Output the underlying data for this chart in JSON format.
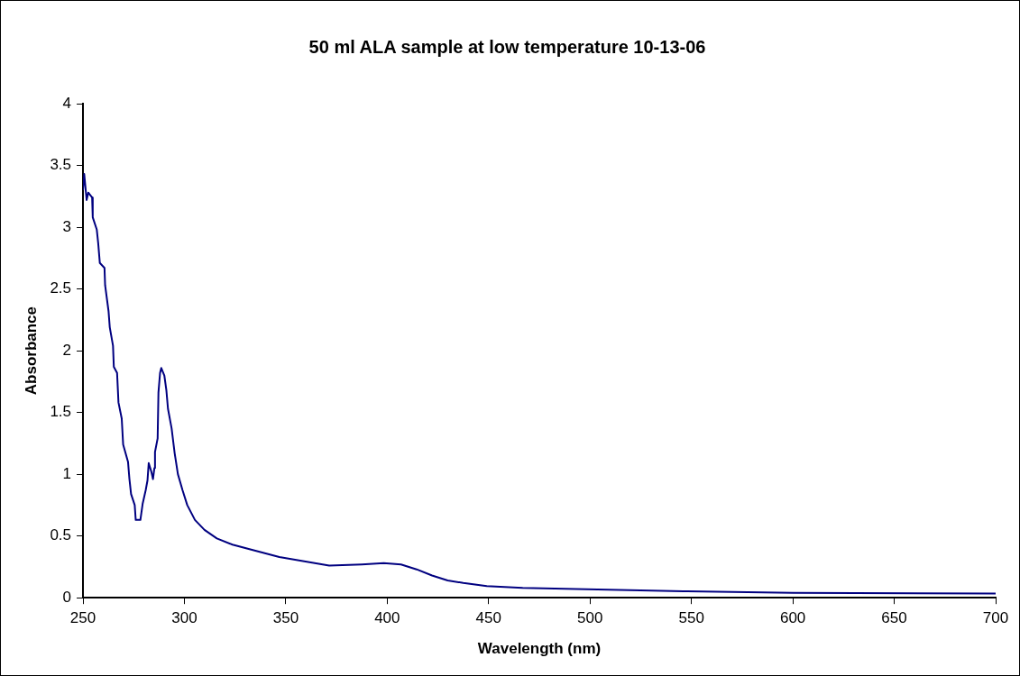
{
  "chart_data": {
    "type": "line",
    "title": "50 ml ALA sample at low temperature 10-13-06",
    "xlabel": "Wavelength (nm)",
    "ylabel": "Absorbance",
    "xlim": [
      250,
      700
    ],
    "xticks": [
      250,
      300,
      350,
      400,
      450,
      500,
      550,
      600,
      650,
      700
    ],
    "ylim": [
      0,
      4
    ],
    "yticks": [
      0,
      0.5,
      1,
      1.5,
      2,
      2.5,
      3,
      3.5,
      4
    ],
    "grid": false,
    "legend": false,
    "marker": "none",
    "line_style": "solid",
    "series": [
      {
        "color": "#000080",
        "x": [
          250,
          250.6,
          251.8,
          252.6,
          254.5,
          254.8,
          256.8,
          257.5,
          258.3,
          260.6,
          260.9,
          262.6,
          263.2,
          264.8,
          265.2,
          266.8,
          267.5,
          269.1,
          269.8,
          272.2,
          272.9,
          273.7,
          275.5,
          276,
          278.3,
          279.4,
          280.9,
          281.8,
          282.4,
          283.7,
          284.5,
          285.2,
          285.5,
          286.8,
          287.2,
          288,
          288.6,
          290.1,
          291.1,
          291.9,
          293.7,
          295.2,
          296.8,
          299.1,
          301.4,
          305.2,
          309.9,
          316,
          323.7,
          332.9,
          346.8,
          371.4,
          387.5,
          398.3,
          406.8,
          414.5,
          422.1,
          429.8,
          437.5,
          449.1,
          466.8,
          509,
          546,
          600,
          700
        ],
        "values": [
          3.3,
          3.43,
          3.22,
          3.28,
          3.24,
          3.08,
          2.98,
          2.87,
          2.71,
          2.67,
          2.53,
          2.32,
          2.19,
          2.04,
          1.87,
          1.82,
          1.58,
          1.45,
          1.24,
          1.1,
          0.96,
          0.84,
          0.75,
          0.63,
          0.63,
          0.76,
          0.87,
          0.95,
          1.09,
          1.02,
          0.96,
          1.05,
          1.18,
          1.29,
          1.66,
          1.82,
          1.86,
          1.8,
          1.68,
          1.53,
          1.37,
          1.17,
          1,
          0.87,
          0.75,
          0.63,
          0.55,
          0.48,
          0.43,
          0.39,
          0.33,
          0.26,
          0.27,
          0.28,
          0.27,
          0.23,
          0.18,
          0.14,
          0.12,
          0.095,
          0.08,
          0.066,
          0.053,
          0.04,
          0.035
        ]
      }
    ]
  }
}
